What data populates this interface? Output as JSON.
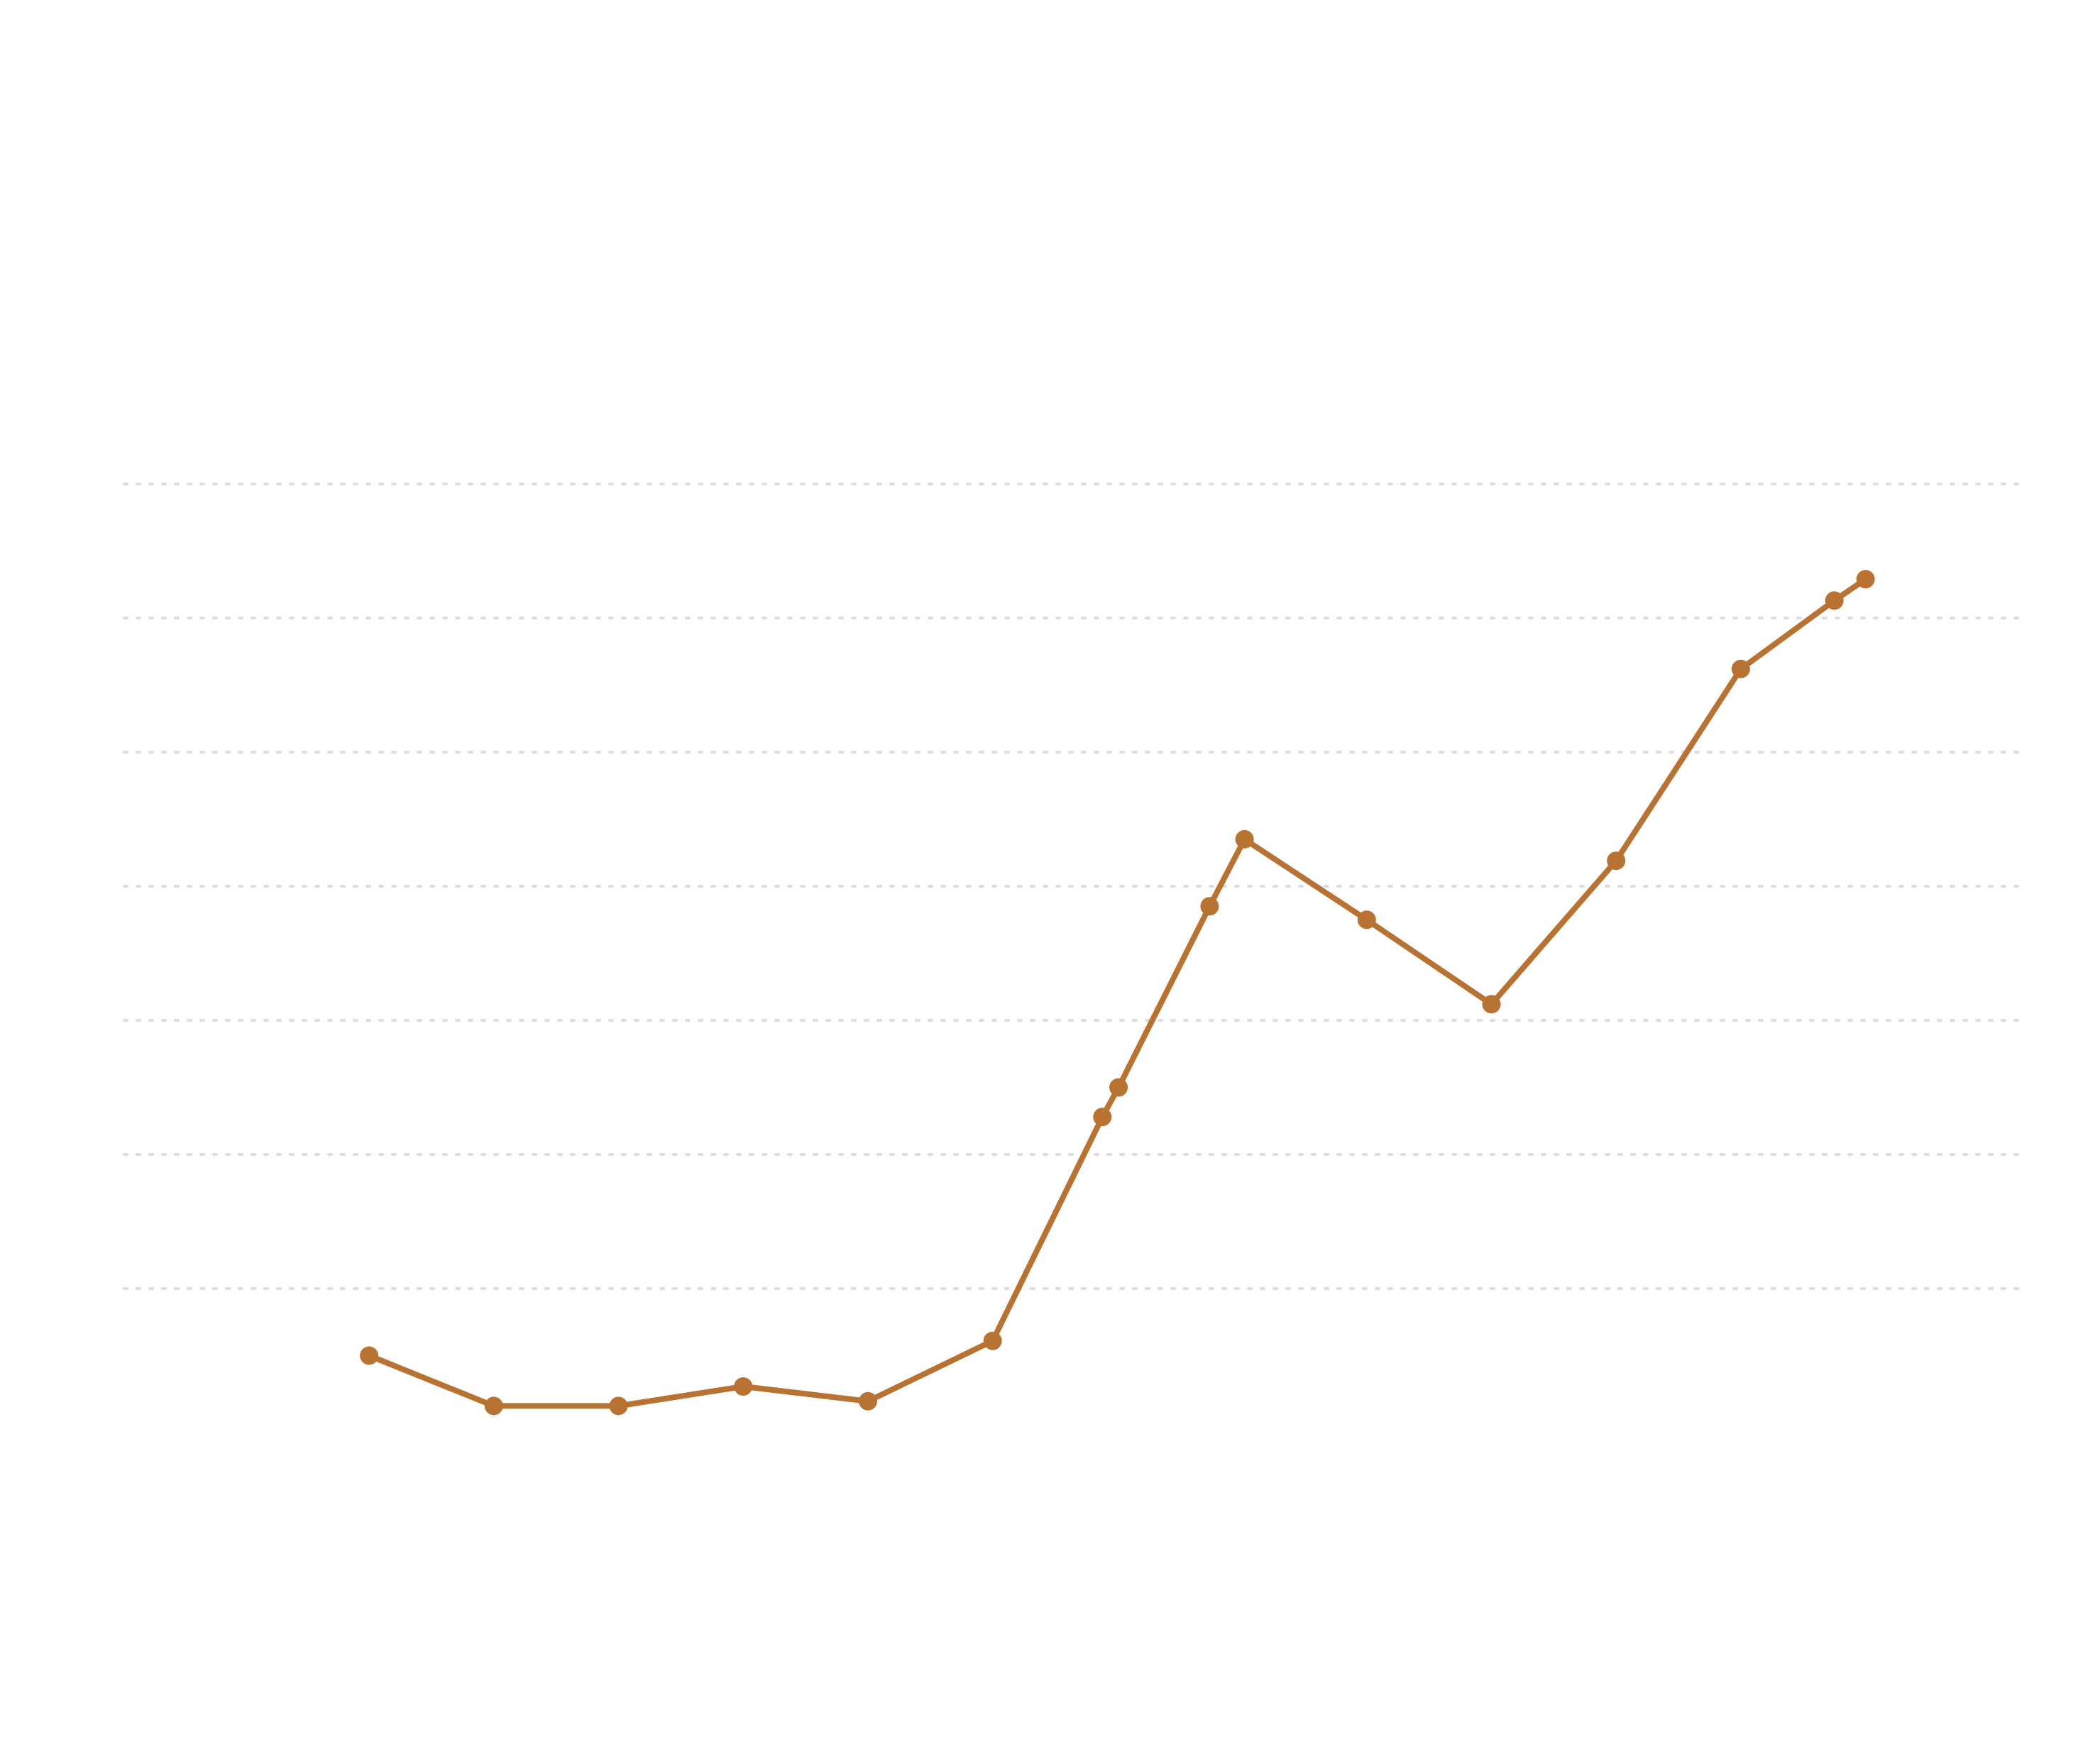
{
  "chart_data": {
    "type": "line",
    "title": "",
    "xlabel": "",
    "ylabel": "",
    "grid": true,
    "legend": "none",
    "x": [
      0,
      1,
      2,
      3,
      4,
      5,
      5.88,
      6.01,
      6.74,
      7.02,
      8,
      9,
      10,
      11,
      11.75,
      12
    ],
    "y": [
      1.5,
      1.125,
      1.125,
      1.27,
      1.16,
      1.61,
      3.28,
      3.5,
      4.85,
      5.35,
      4.75,
      4.12,
      5.19,
      6.62,
      7.13,
      7.29
    ],
    "xlim": [
      -2.96,
      13.88
    ],
    "ylim": [
      0,
      10
    ],
    "yticks": [
      2,
      3,
      4,
      5,
      6,
      7,
      8
    ],
    "colors": {
      "series": "#b87333",
      "grid": "#dddddd",
      "background": "#ffffff"
    }
  }
}
